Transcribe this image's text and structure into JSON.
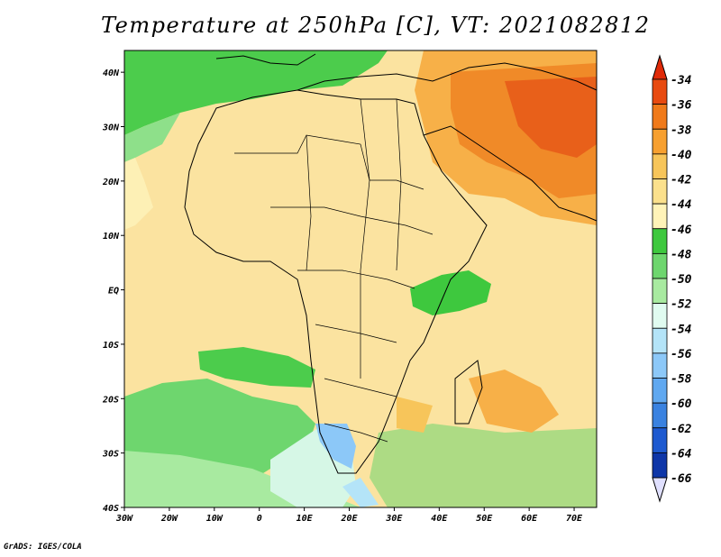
{
  "title": "Temperature at 250hPa [C], VT: 2021082812",
  "credit": "GrADS: IGES/COLA",
  "map": {
    "lon_range": [
      -30,
      75
    ],
    "lat_range": [
      -40,
      44
    ],
    "x_ticks": [
      "30W",
      "20W",
      "10W",
      "0",
      "10E",
      "20E",
      "30E",
      "40E",
      "50E",
      "60E",
      "70E"
    ],
    "y_ticks": [
      "40N",
      "30N",
      "20N",
      "10N",
      "EQ",
      "10S",
      "20S",
      "30S",
      "40S"
    ]
  },
  "colorbar": {
    "labels": [
      "-34",
      "-36",
      "-38",
      "-40",
      "-42",
      "-44",
      "-46",
      "-48",
      "-50",
      "-52",
      "-54",
      "-56",
      "-58",
      "-60",
      "-62",
      "-64",
      "-66"
    ],
    "colors": [
      "#e84a10",
      "#f07a1a",
      "#f7a030",
      "#f7c55a",
      "#fbe08c",
      "#fff3b8",
      "#3ec83e",
      "#6ed66e",
      "#a8eaa0",
      "#e0fbf0",
      "#b4e4f8",
      "#8cc8f8",
      "#60a8f0",
      "#3a82e0",
      "#1e5ad0",
      "#0e36a8",
      "#0a1678"
    ],
    "top_arrow_color": "#e02a08",
    "bottom_arrow_color": "#e0e0ff"
  }
}
